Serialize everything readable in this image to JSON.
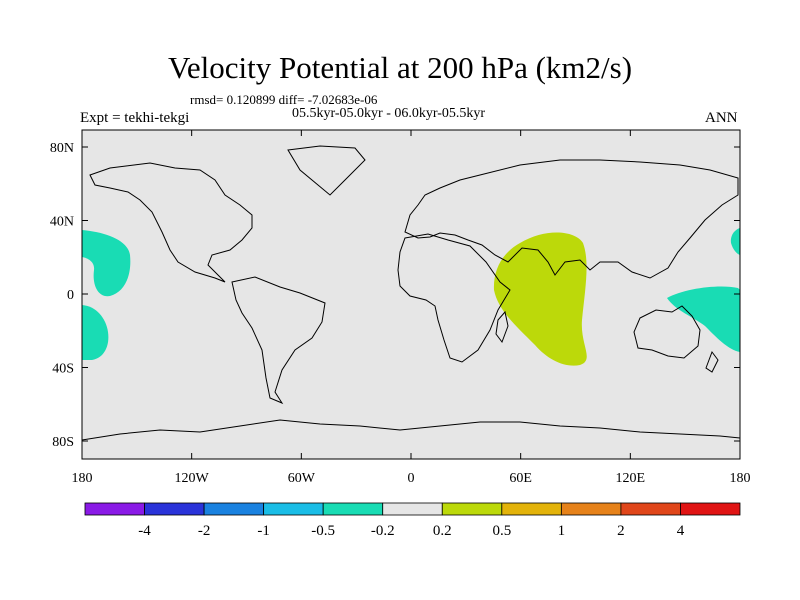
{
  "title": "Velocity Potential at 200 hPa (km2/s)",
  "stats": "rmsd= 0.120899 diff= -7.02683e-06",
  "periods": "05.5kyr-05.0kyr - 06.0kyr-05.5kyr",
  "expt": "Expt = tekhi-tekgi",
  "season": "ANN",
  "map": {
    "background_color": "#e6e6e6",
    "x_ticks": [
      "180",
      "120W",
      "60W",
      "0",
      "60E",
      "120E",
      "180"
    ],
    "y_ticks": [
      "80N",
      "40N",
      "0",
      "40S",
      "80S"
    ]
  },
  "colorbar": {
    "colors": [
      "#8a1ae6",
      "#2a33d9",
      "#1a82e0",
      "#1abde6",
      "#19dcb4",
      "#e6e6e6",
      "#bcd90a",
      "#e3b30a",
      "#e6821a",
      "#e0461a",
      "#e01414"
    ],
    "labels": [
      "-4",
      "-2",
      "-1",
      "-0.5",
      "-0.2",
      "0.2",
      "0.5",
      "1",
      "2",
      "4"
    ]
  },
  "anomaly_colors": {
    "positive": "#bcd90a",
    "negative": "#19dcb4"
  }
}
